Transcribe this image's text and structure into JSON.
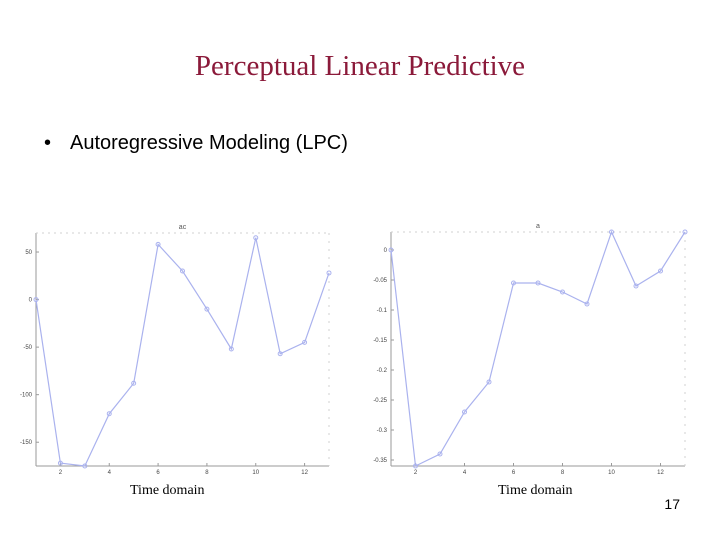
{
  "slide": {
    "title": "Perceptual Linear Predictive",
    "bullet": "Autoregressive Modeling (LPC)",
    "bullet_marker": "•",
    "page_number": "17"
  },
  "colors": {
    "title": "#8b1a3a",
    "series_line": "#aab2ee",
    "axis": "#9a9a9a"
  },
  "chart_data": [
    {
      "type": "line",
      "title": "ac",
      "caption": "Time domain",
      "xlim": [
        1,
        13
      ],
      "ylim": [
        -175,
        70
      ],
      "xticks": [
        2,
        4,
        6,
        8,
        10,
        12
      ],
      "yticks": [
        50,
        0,
        -50,
        -100,
        -150
      ],
      "ytick_labels": [
        "50",
        "0",
        "-50",
        "-100",
        "-150"
      ],
      "x": [
        1,
        2,
        3,
        4,
        5,
        6,
        7,
        8,
        9,
        10,
        11,
        12,
        13
      ],
      "series": [
        {
          "values": [
            0,
            -172,
            -175,
            -120,
            -88,
            58,
            30,
            -10,
            -52,
            65,
            -57,
            -45,
            28
          ]
        }
      ]
    },
    {
      "type": "line",
      "title": "a",
      "caption": "Time domain",
      "xlim": [
        1,
        13
      ],
      "ylim": [
        -0.36,
        0.03
      ],
      "xticks": [
        2,
        4,
        6,
        8,
        10,
        12
      ],
      "yticks": [
        0,
        -0.05,
        -0.1,
        -0.15,
        -0.2,
        -0.25,
        -0.3,
        -0.35
      ],
      "ytick_labels": [
        "0",
        "-0.05",
        "-0.1",
        "-0.15",
        "-0.2",
        "-0.25",
        "-0.3",
        "-0.35"
      ],
      "x": [
        1,
        2,
        3,
        4,
        5,
        6,
        7,
        8,
        9,
        10,
        11,
        12,
        13
      ],
      "series": [
        {
          "values": [
            0,
            -0.36,
            -0.34,
            -0.27,
            -0.22,
            -0.055,
            -0.055,
            -0.07,
            -0.09,
            0.03,
            -0.06,
            -0.035,
            0.03
          ]
        }
      ]
    }
  ]
}
